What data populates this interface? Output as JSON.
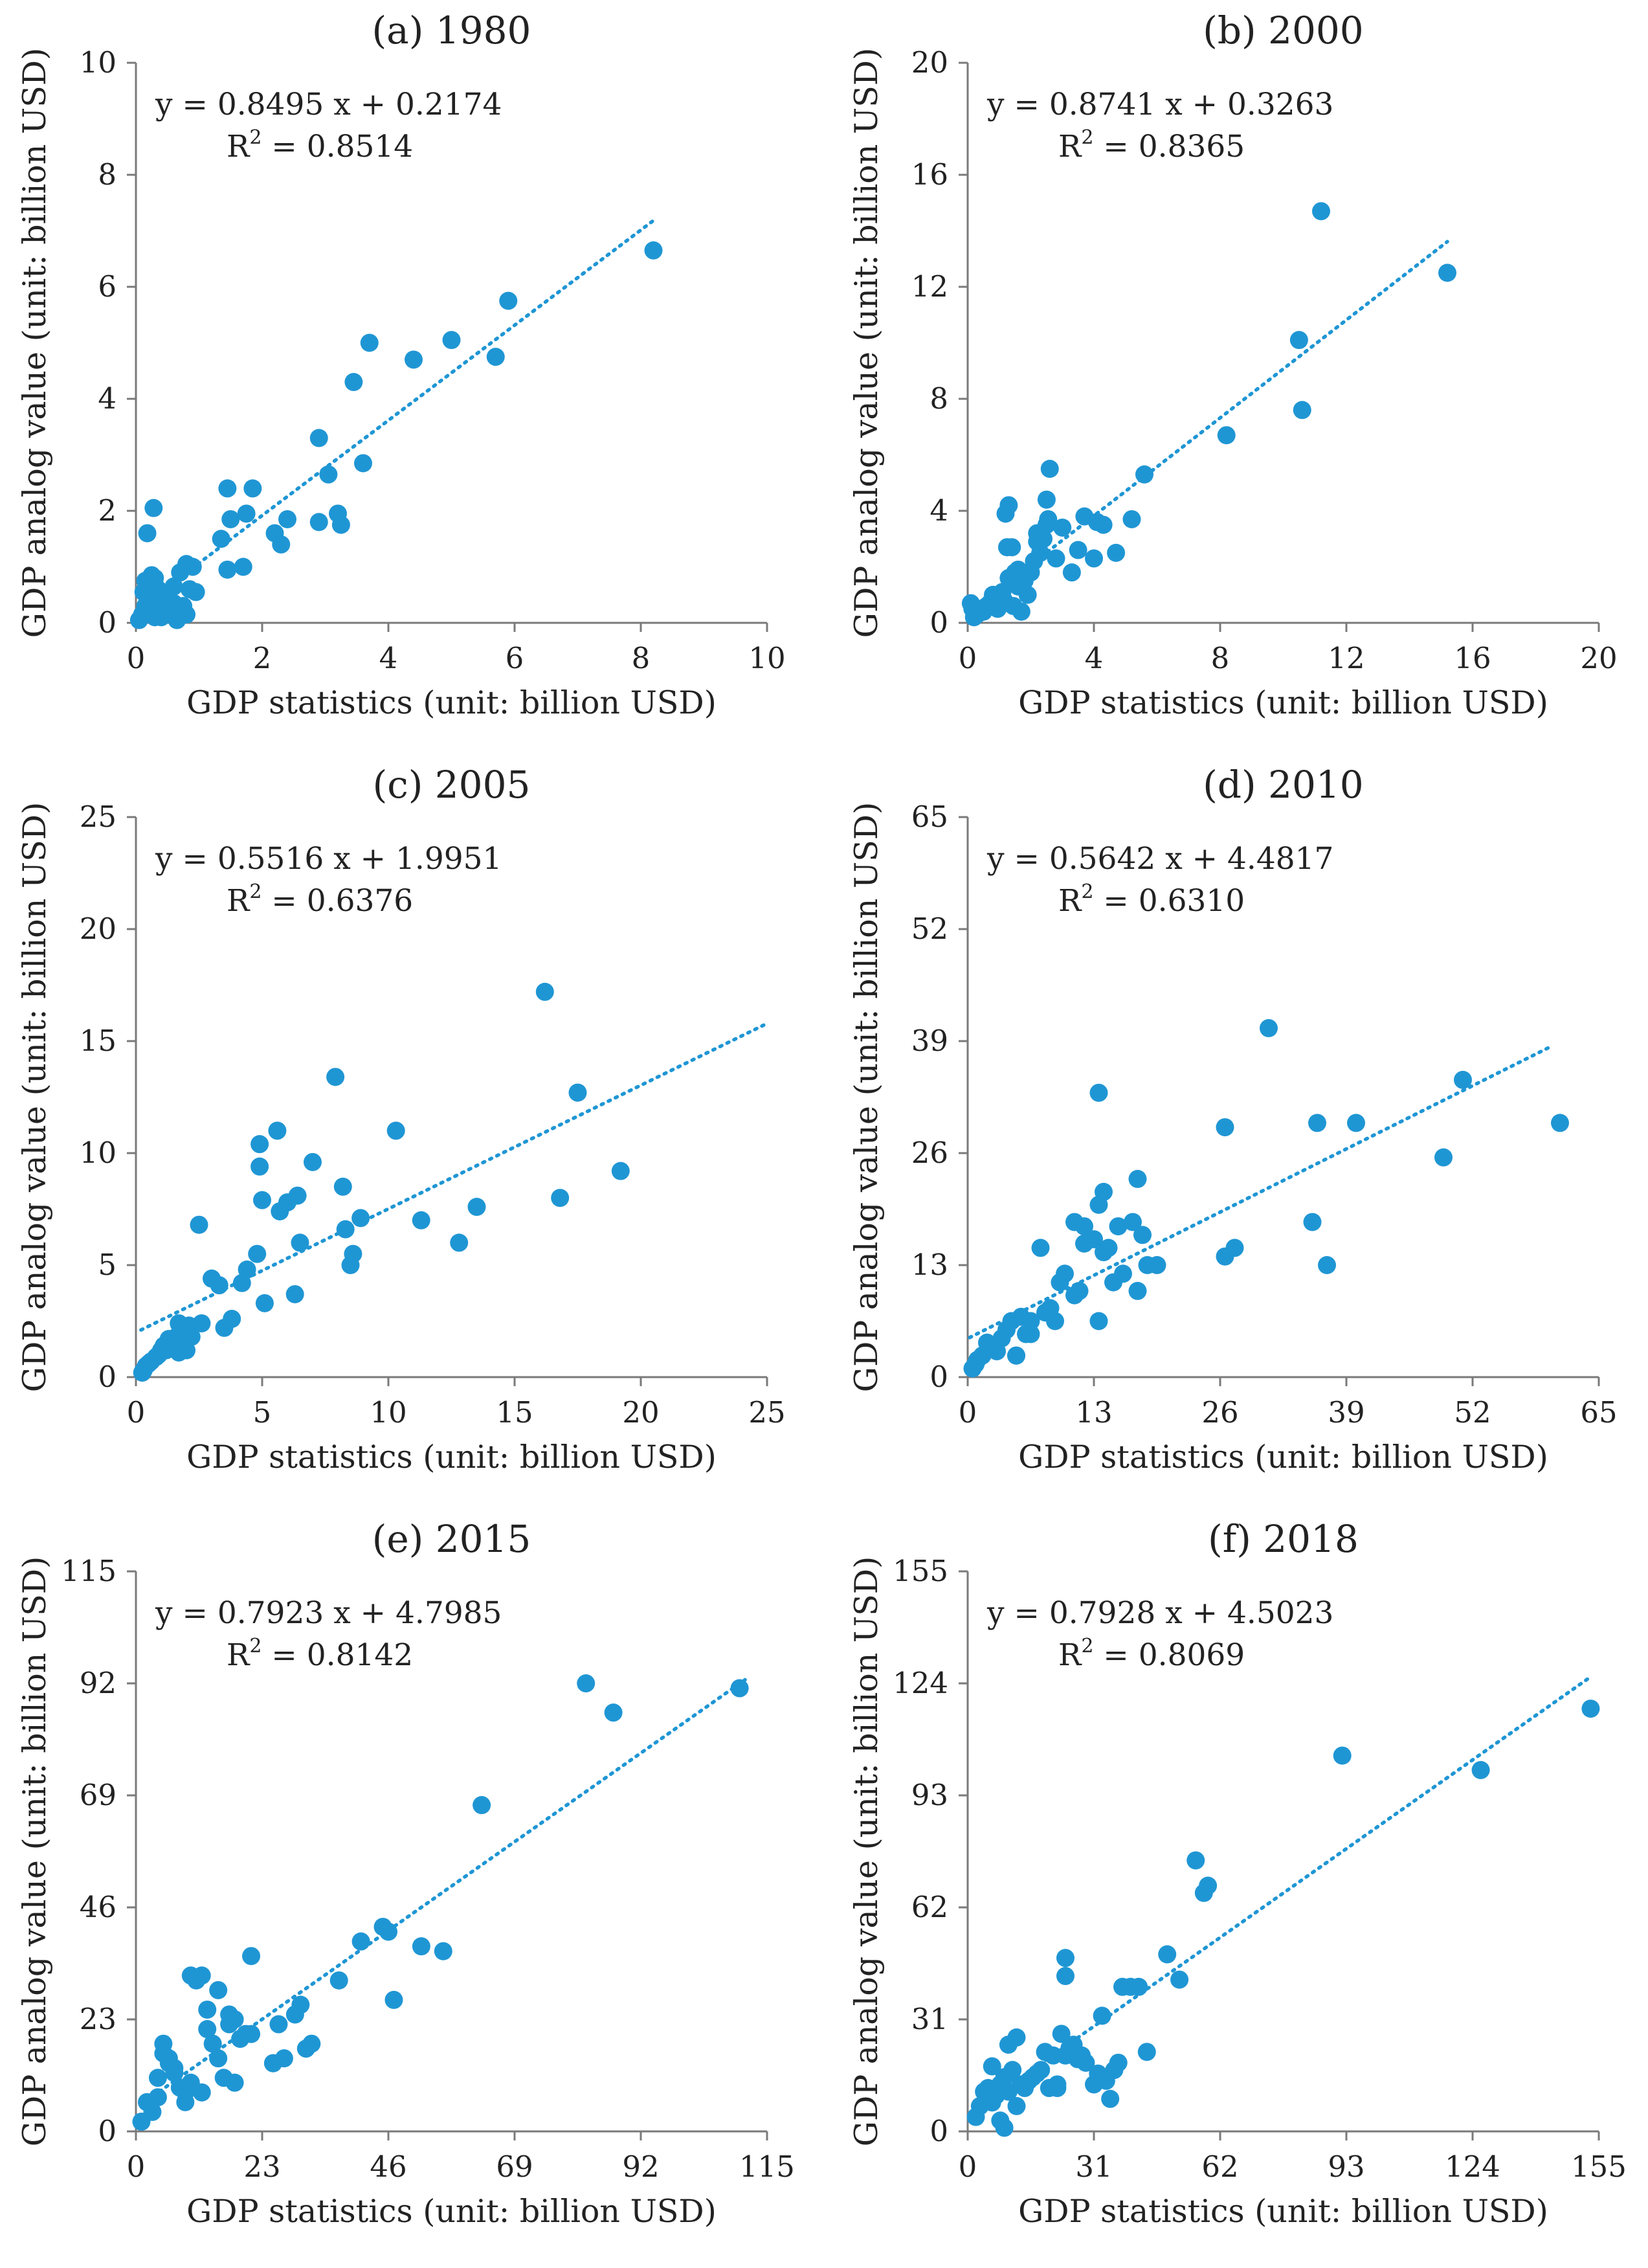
{
  "colors": {
    "points": "#1f96d4",
    "trendline": "#1f96d4",
    "axes": "#7a7a7a"
  },
  "chart_data": [
    {
      "type": "scatter",
      "title": "(a) 1980",
      "xlabel": "GDP statistics (unit: billion USD)",
      "ylabel": "GDP analog value (unit: billion USD)",
      "xlim": [
        0,
        10
      ],
      "ylim": [
        0,
        10
      ],
      "xticks": [
        0,
        2,
        4,
        6,
        8,
        10
      ],
      "yticks": [
        0,
        2,
        4,
        6,
        8,
        10
      ],
      "xtick_labels": [
        "0",
        "2",
        "4",
        "6",
        "8",
        "10"
      ],
      "ytick_labels": [
        "0",
        "2",
        "4",
        "6",
        "8",
        "10"
      ],
      "equation": "y = 0.8495 x + 0.2174",
      "r2_prefix": "R",
      "r2_sup": "2",
      "r2_value": " = 0.8514",
      "trendline": {
        "slope": 0.8495,
        "intercept": 0.2174,
        "x_range": [
          0,
          8.2
        ]
      },
      "grid": false,
      "legend": "none",
      "x": [
        8.2,
        5.9,
        5.7,
        5.0,
        4.4,
        3.7,
        3.45,
        3.6,
        2.9,
        3.05,
        3.2,
        3.25,
        2.9,
        2.4,
        2.3,
        2.2,
        1.85,
        1.45,
        1.5,
        1.75,
        1.7,
        1.35,
        1.45,
        0.8,
        0.7,
        0.9,
        0.85,
        0.95,
        0.75,
        0.8,
        0.6,
        0.55,
        0.5,
        0.45,
        0.35,
        0.3,
        0.25,
        0.2,
        0.15,
        0.1,
        0.05,
        0.2,
        0.3,
        0.35,
        0.4,
        0.25,
        0.15,
        0.3,
        0.28,
        0.18,
        0.6,
        0.65,
        0.4,
        0.5,
        0.12
      ],
      "y": [
        6.65,
        5.75,
        4.75,
        5.05,
        4.7,
        5.0,
        4.3,
        2.85,
        3.3,
        2.65,
        1.95,
        1.75,
        1.8,
        1.85,
        1.4,
        1.6,
        2.4,
        2.4,
        1.85,
        1.95,
        1.0,
        1.5,
        0.95,
        1.05,
        0.9,
        1.0,
        0.6,
        0.55,
        0.3,
        0.15,
        0.35,
        0.2,
        0.45,
        0.5,
        0.6,
        0.8,
        0.65,
        0.4,
        0.3,
        0.15,
        0.05,
        0.2,
        0.1,
        0.3,
        0.25,
        0.85,
        0.75,
        0.45,
        2.05,
        1.6,
        0.65,
        0.05,
        0.1,
        0.25,
        0.55
      ]
    },
    {
      "type": "scatter",
      "title": "(b) 2000",
      "xlabel": "GDP statistics (unit: billion USD)",
      "ylabel": "GDP analog value (unit: billion USD)",
      "xlim": [
        0,
        20
      ],
      "ylim": [
        0,
        20
      ],
      "xticks": [
        0,
        4,
        8,
        12,
        16,
        20
      ],
      "yticks": [
        0,
        4,
        8,
        12,
        16,
        20
      ],
      "xtick_labels": [
        "0",
        "4",
        "8",
        "12",
        "16",
        "20"
      ],
      "ytick_labels": [
        "0",
        "4",
        "8",
        "12",
        "16",
        "20"
      ],
      "equation": "y = 0.8741 x + 0.3263",
      "r2_prefix": "R",
      "r2_sup": "2",
      "r2_value": " = 0.8365",
      "trendline": {
        "slope": 0.8741,
        "intercept": 0.3263,
        "x_range": [
          0,
          15.2
        ]
      },
      "grid": false,
      "legend": "none",
      "x": [
        11.2,
        15.2,
        10.5,
        10.6,
        8.2,
        5.6,
        5.2,
        4.7,
        4.3,
        4.1,
        4.0,
        3.7,
        3.5,
        3.3,
        2.6,
        2.5,
        2.5,
        2.55,
        2.4,
        2.3,
        2.2,
        2.1,
        2.0,
        1.9,
        1.8,
        1.6,
        1.5,
        1.4,
        1.3,
        1.2,
        1.15,
        1.1,
        1.0,
        0.9,
        0.8,
        0.7,
        0.6,
        0.5,
        0.4,
        0.3,
        0.2,
        0.15,
        0.1,
        1.25,
        1.3,
        2.2,
        2.8,
        3.0,
        1.6,
        1.7,
        0.95,
        1.45
      ],
      "y": [
        14.7,
        12.5,
        10.1,
        7.6,
        6.7,
        5.3,
        3.7,
        2.5,
        3.5,
        3.6,
        2.3,
        3.8,
        2.6,
        1.8,
        5.5,
        4.4,
        3.5,
        3.7,
        3.0,
        2.5,
        3.2,
        2.2,
        1.8,
        1.0,
        1.5,
        1.3,
        1.8,
        2.7,
        4.2,
        3.9,
        0.8,
        1.1,
        0.6,
        0.9,
        1.0,
        0.7,
        0.6,
        0.4,
        0.5,
        0.3,
        0.2,
        0.5,
        0.7,
        2.7,
        1.6,
        2.9,
        2.3,
        3.4,
        1.9,
        0.4,
        0.5,
        0.6
      ]
    },
    {
      "type": "scatter",
      "title": "(c) 2005",
      "xlabel": "GDP statistics (unit: billion USD)",
      "ylabel": "GDP analog value (unit: billion USD)",
      "xlim": [
        0,
        25
      ],
      "ylim": [
        0,
        25
      ],
      "xticks": [
        0,
        5,
        10,
        15,
        20,
        25
      ],
      "yticks": [
        0,
        5,
        10,
        15,
        20,
        25
      ],
      "xtick_labels": [
        "0",
        "5",
        "10",
        "15",
        "20",
        "25"
      ],
      "ytick_labels": [
        "0",
        "5",
        "10",
        "15",
        "20",
        "25"
      ],
      "equation": "y = 0.5516 x + 1.9951",
      "r2_prefix": "R",
      "r2_sup": "2",
      "r2_value": " = 0.6376",
      "trendline": {
        "slope": 0.5516,
        "intercept": 1.9951,
        "x_range": [
          0.2,
          25
        ]
      },
      "grid": false,
      "legend": "none",
      "x": [
        16.2,
        17.5,
        19.2,
        16.8,
        13.5,
        12.8,
        11.3,
        10.3,
        8.9,
        8.5,
        8.6,
        8.3,
        8.2,
        7.9,
        7.0,
        6.4,
        6.3,
        6.0,
        5.7,
        5.6,
        5.1,
        5.0,
        4.9,
        4.9,
        4.8,
        4.4,
        4.2,
        3.8,
        3.5,
        3.3,
        3.0,
        2.6,
        2.5,
        2.1,
        2.0,
        1.9,
        1.8,
        1.7,
        1.6,
        1.5,
        1.4,
        1.3,
        1.2,
        1.1,
        1.0,
        0.9,
        0.8,
        0.6,
        0.5,
        0.4,
        0.3,
        0.25,
        6.5,
        2.2,
        1.7
      ],
      "y": [
        17.2,
        12.7,
        9.2,
        8.0,
        7.6,
        6.0,
        7.0,
        11.0,
        7.1,
        5.0,
        5.5,
        6.6,
        8.5,
        13.4,
        9.6,
        8.1,
        3.7,
        7.8,
        7.4,
        11.0,
        3.3,
        7.9,
        9.4,
        10.4,
        5.5,
        4.8,
        4.2,
        2.6,
        2.2,
        4.1,
        4.4,
        2.4,
        6.8,
        2.3,
        1.2,
        1.6,
        2.0,
        2.4,
        1.8,
        1.3,
        1.5,
        1.7,
        1.2,
        1.4,
        1.2,
        1.0,
        0.9,
        0.7,
        0.6,
        0.5,
        0.3,
        0.2,
        6.0,
        1.8,
        1.1
      ]
    },
    {
      "type": "scatter",
      "title": "(d) 2010",
      "xlabel": "GDP statistics (unit: billion USD)",
      "ylabel": "GDP analog value (unit: billion USD)",
      "xlim": [
        0,
        65
      ],
      "ylim": [
        0,
        65
      ],
      "xticks": [
        0,
        13,
        26,
        39,
        52,
        65
      ],
      "yticks": [
        0,
        13,
        26,
        39,
        52,
        65
      ],
      "xtick_labels": [
        "0",
        "13",
        "26",
        "39",
        "52",
        "65"
      ],
      "ytick_labels": [
        "0",
        "13",
        "26",
        "39",
        "52",
        "65"
      ],
      "equation": "y = 0.5642 x + 4.4817",
      "r2_prefix": "R",
      "r2_sup": "2",
      "r2_value": " = 0.6310",
      "trendline": {
        "slope": 0.5642,
        "intercept": 4.4817,
        "x_range": [
          0.2,
          60
        ]
      },
      "grid": false,
      "legend": "none",
      "x": [
        31,
        61,
        51,
        40,
        36,
        49,
        26.5,
        35.5,
        37,
        27.5,
        26.5,
        19.5,
        18,
        17.5,
        17.5,
        17,
        16,
        15,
        14,
        13.5,
        13,
        13.5,
        12,
        11.5,
        11,
        10,
        9.5,
        9,
        8.5,
        8,
        7.5,
        6.5,
        6,
        5.5,
        5,
        4.5,
        4,
        3.5,
        3,
        2.5,
        2,
        1.5,
        1,
        0.8,
        0.5,
        15.5,
        14.5,
        13.5,
        12,
        14,
        18.5,
        11,
        6.5,
        5
      ],
      "y": [
        40.5,
        29.5,
        34.5,
        29.5,
        29.5,
        25.5,
        29,
        18,
        13,
        15,
        14,
        13,
        16.5,
        10,
        23,
        18,
        12,
        11,
        21.5,
        20,
        16,
        33,
        17.5,
        10,
        18,
        12,
        11,
        6.5,
        8,
        7.5,
        15,
        6.5,
        5,
        7,
        2.5,
        6.5,
        5.5,
        4.5,
        3,
        3.5,
        4,
        2.5,
        2,
        1.5,
        1,
        17.5,
        15,
        6.5,
        15.5,
        14.5,
        13,
        9.5,
        5,
        2.5
      ]
    },
    {
      "type": "scatter",
      "title": "(e) 2015",
      "xlabel": "GDP statistics (unit: billion USD)",
      "ylabel": "GDP analog value (unit: billion USD)",
      "xlim": [
        0,
        115
      ],
      "ylim": [
        0,
        115
      ],
      "xticks": [
        0,
        23,
        46,
        69,
        92,
        115
      ],
      "yticks": [
        0,
        23,
        46,
        69,
        92,
        115
      ],
      "xtick_labels": [
        "0",
        "23",
        "46",
        "69",
        "92",
        "115"
      ],
      "ytick_labels": [
        "0",
        "23",
        "46",
        "69",
        "92",
        "115"
      ],
      "equation": "y = 0.7923 x + 4.7985",
      "r2_prefix": "R",
      "r2_sup": "2",
      "r2_value": " = 0.8142",
      "trendline": {
        "slope": 0.7923,
        "intercept": 4.7985,
        "x_range": [
          2,
          111
        ]
      },
      "grid": false,
      "legend": "none",
      "x": [
        110,
        82,
        87,
        63,
        52,
        56,
        47,
        45,
        46,
        41,
        37,
        32,
        31,
        30,
        29,
        27,
        26,
        25,
        21,
        20,
        18,
        17,
        16,
        15,
        14,
        13,
        12,
        11,
        10,
        9,
        8,
        7,
        6,
        5,
        4,
        3,
        2,
        1,
        21,
        13,
        9,
        17,
        19,
        15,
        6,
        5,
        4,
        7,
        12,
        10,
        18,
        25
      ],
      "y": [
        91,
        92,
        86,
        67,
        38,
        37,
        27,
        42,
        41,
        39,
        31,
        18,
        17,
        26,
        24,
        15,
        22,
        14,
        36,
        20,
        10,
        22,
        11,
        15,
        18,
        21,
        8,
        31,
        32,
        6,
        9,
        12,
        15,
        18,
        7,
        4,
        6,
        2,
        20,
        25,
        8,
        24,
        19,
        29,
        14,
        16,
        11,
        13,
        32,
        10,
        23,
        14
      ]
    },
    {
      "type": "scatter",
      "title": "(f) 2018",
      "xlabel": "GDP statistics (unit: billion USD)",
      "ylabel": "GDP analog value (unit: billion USD)",
      "xlim": [
        0,
        155
      ],
      "ylim": [
        0,
        155
      ],
      "xticks": [
        0,
        31,
        62,
        93,
        124,
        155
      ],
      "yticks": [
        0,
        31,
        62,
        93,
        124,
        155
      ],
      "xtick_labels": [
        "0",
        "31",
        "62",
        "93",
        "124",
        "155"
      ],
      "ytick_labels": [
        "0",
        "31",
        "62",
        "93",
        "124",
        "155"
      ],
      "equation": "y = 0.7928 x + 4.5023",
      "r2_prefix": "R",
      "r2_sup": "2",
      "r2_value": " = 0.8069",
      "trendline": {
        "slope": 0.7928,
        "intercept": 4.5023,
        "x_range": [
          2,
          153
        ]
      },
      "grid": false,
      "legend": "none",
      "x": [
        153,
        126,
        92,
        56,
        58,
        59,
        49,
        52,
        42,
        38,
        40,
        33,
        44,
        37,
        36,
        34,
        32,
        31,
        29,
        28,
        27,
        25,
        24,
        23,
        22,
        21,
        20,
        19,
        18,
        17,
        16,
        15,
        14,
        13,
        12,
        11,
        10,
        9,
        8,
        7,
        6,
        5,
        4,
        3,
        2,
        24,
        24,
        10,
        35,
        22,
        26,
        8,
        12,
        6,
        9
      ],
      "y": [
        117,
        100,
        104,
        75,
        66,
        68,
        49,
        42,
        40,
        40,
        40,
        32,
        22,
        19,
        17,
        14,
        16,
        13,
        19,
        21,
        20,
        23,
        21,
        27,
        13,
        21,
        12,
        22,
        17,
        16,
        15,
        14,
        12,
        13,
        26,
        17,
        11,
        15,
        13,
        10,
        18,
        12,
        11,
        7,
        4,
        48,
        43,
        24,
        9,
        12,
        24,
        3,
        7,
        8,
        1
      ]
    }
  ]
}
